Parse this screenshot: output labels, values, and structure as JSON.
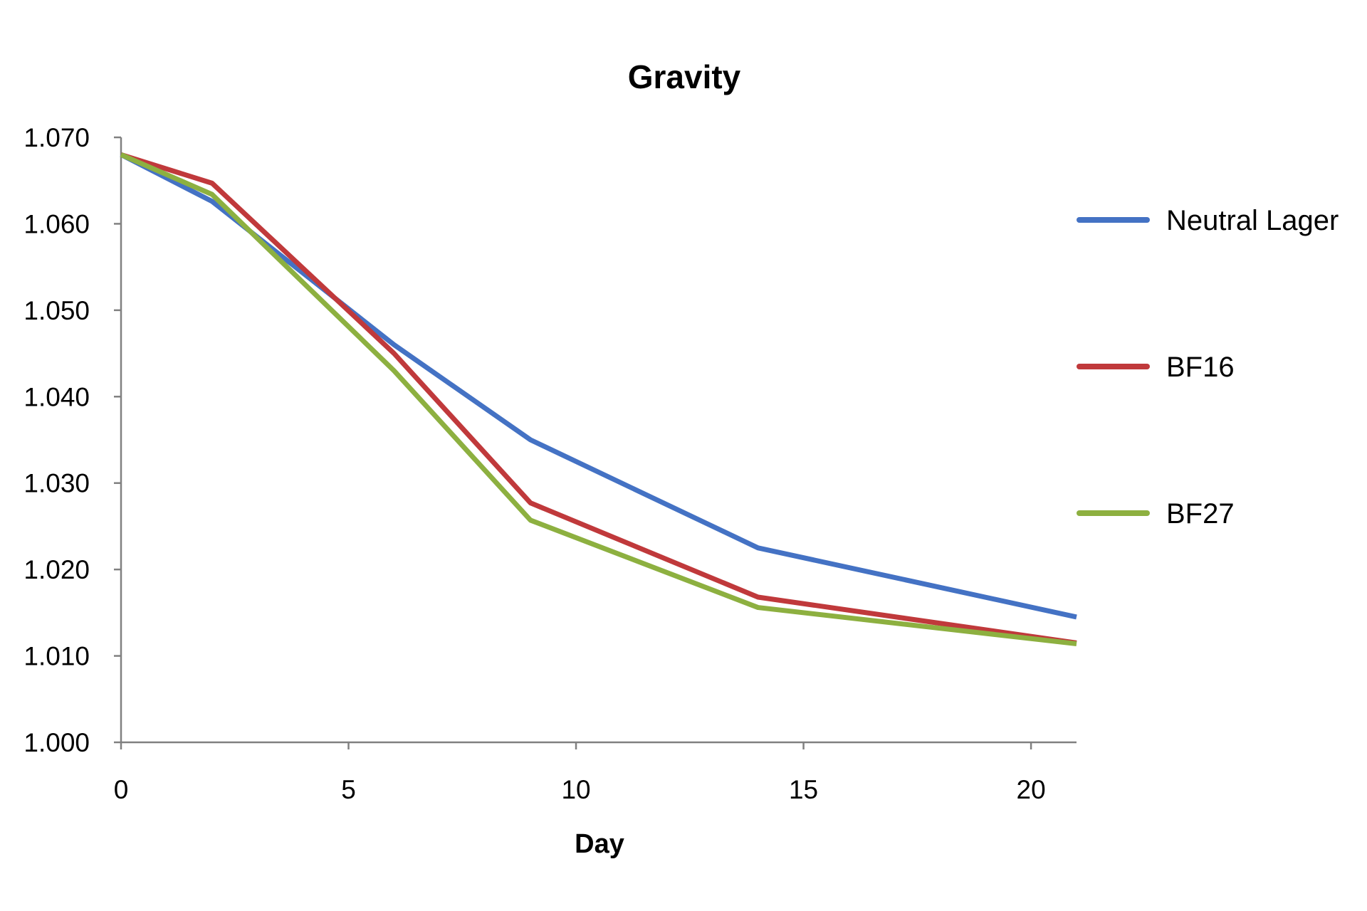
{
  "chart_data": {
    "type": "line",
    "title": "Gravity",
    "xlabel": "Day",
    "ylabel": "",
    "xlim": [
      0,
      21
    ],
    "ylim": [
      1.0,
      1.07
    ],
    "xticks": [
      0,
      5,
      10,
      15,
      20
    ],
    "xtick_labels": [
      "0",
      "5",
      "10",
      "15",
      "20"
    ],
    "yticks": [
      1.0,
      1.01,
      1.02,
      1.03,
      1.04,
      1.05,
      1.06,
      1.07
    ],
    "ytick_labels": [
      "1.000",
      "1.010",
      "1.020",
      "1.030",
      "1.040",
      "1.050",
      "1.060",
      "1.070"
    ],
    "grid": false,
    "legend_position": "right",
    "x": [
      0,
      2,
      6,
      9,
      14,
      21
    ],
    "series": [
      {
        "name": "Neutral Lager",
        "color": "#4472c4",
        "values": [
          1.068,
          1.0626,
          1.046,
          1.035,
          1.0225,
          1.0145
        ]
      },
      {
        "name": "BF16",
        "color": "#c0393b",
        "values": [
          1.068,
          1.0647,
          1.045,
          1.0277,
          1.0168,
          1.0115
        ]
      },
      {
        "name": "BF27",
        "color": "#8db040",
        "values": [
          1.068,
          1.0634,
          1.043,
          1.0257,
          1.0156,
          1.0114
        ]
      }
    ]
  }
}
